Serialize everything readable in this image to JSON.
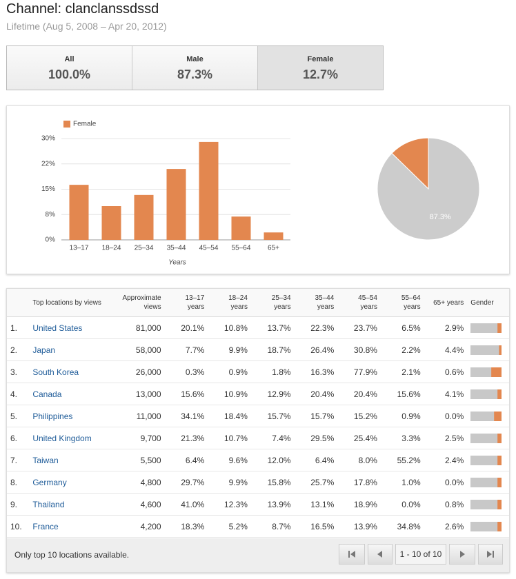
{
  "header": {
    "title": "Channel: clanclanssdssd",
    "subtitle": "Lifetime (Aug 5, 2008 – Apr 20, 2012)"
  },
  "tabs": {
    "items": [
      {
        "label": "All",
        "value": "100.0%"
      },
      {
        "label": "Male",
        "value": "87.3%"
      },
      {
        "label": "Female",
        "value": "12.7%"
      }
    ],
    "selected": 2
  },
  "chart_data": [
    {
      "type": "bar",
      "categories": [
        "13–17",
        "18–24",
        "25–34",
        "35–44",
        "45–54",
        "55–64",
        "65+"
      ],
      "series": [
        {
          "name": "Female",
          "color": "#e3874f",
          "values": [
            16.3,
            10,
            13.3,
            21,
            29,
            6.9,
            2.2
          ]
        }
      ],
      "xlabel": "Years",
      "ylim": [
        0,
        30
      ],
      "yticks": [
        {
          "value": 0,
          "label": "0%"
        },
        {
          "value": 7.5,
          "label": "8%"
        },
        {
          "value": 15,
          "label": "15%"
        },
        {
          "value": 22.5,
          "label": "22%"
        },
        {
          "value": 30,
          "label": "30%"
        }
      ],
      "grid": true,
      "legend": "top-left"
    },
    {
      "type": "pie",
      "values": [
        12.7,
        87.3
      ],
      "colors": [
        "#e3874f",
        "#cccccc"
      ],
      "value_labels": [
        null,
        "87.3%"
      ]
    }
  ],
  "table": {
    "columns": [
      "Top locations by views",
      "Approximate views",
      "13–17 years",
      "18–24 years",
      "25–34 years",
      "35–44 years",
      "45–54 years",
      "55–64 years",
      "65+ years",
      "Gender"
    ],
    "rows": [
      [
        "1.",
        "United States",
        "81,000",
        "20.1%",
        "10.8%",
        "13.7%",
        "22.3%",
        "23.7%",
        "6.5%",
        "2.9%"
      ],
      [
        "2.",
        "Japan",
        "58,000",
        "7.7%",
        "9.9%",
        "18.7%",
        "26.4%",
        "30.8%",
        "2.2%",
        "4.4%"
      ],
      [
        "3.",
        "South Korea",
        "26,000",
        "0.3%",
        "0.9%",
        "1.8%",
        "16.3%",
        "77.9%",
        "2.1%",
        "0.6%"
      ],
      [
        "4.",
        "Canada",
        "13,000",
        "15.6%",
        "10.9%",
        "12.9%",
        "20.4%",
        "20.4%",
        "15.6%",
        "4.1%"
      ],
      [
        "5.",
        "Philippines",
        "11,000",
        "34.1%",
        "18.4%",
        "15.7%",
        "15.7%",
        "15.2%",
        "0.9%",
        "0.0%"
      ],
      [
        "6.",
        "United Kingdom",
        "9,700",
        "21.3%",
        "10.7%",
        "7.4%",
        "29.5%",
        "25.4%",
        "3.3%",
        "2.5%"
      ],
      [
        "7.",
        "Taiwan",
        "5,500",
        "6.4%",
        "9.6%",
        "12.0%",
        "6.4%",
        "8.0%",
        "55.2%",
        "2.4%"
      ],
      [
        "8.",
        "Germany",
        "4,800",
        "29.7%",
        "9.9%",
        "15.8%",
        "25.7%",
        "17.8%",
        "1.0%",
        "0.0%"
      ],
      [
        "9.",
        "Thailand",
        "4,600",
        "41.0%",
        "12.3%",
        "13.9%",
        "13.1%",
        "18.9%",
        "0.0%",
        "0.8%"
      ],
      [
        "10.",
        "France",
        "4,200",
        "18.3%",
        "5.2%",
        "8.7%",
        "16.5%",
        "13.9%",
        "34.8%",
        "2.6%"
      ]
    ],
    "gender_female": [
      13,
      8,
      33,
      13,
      24,
      13,
      13,
      13,
      13,
      13
    ],
    "gender_colors": [
      "#c8c8c8",
      "#e3874f"
    ],
    "footer": "Only top 10 locations available.",
    "pagination": "1 - 10 of 10"
  }
}
